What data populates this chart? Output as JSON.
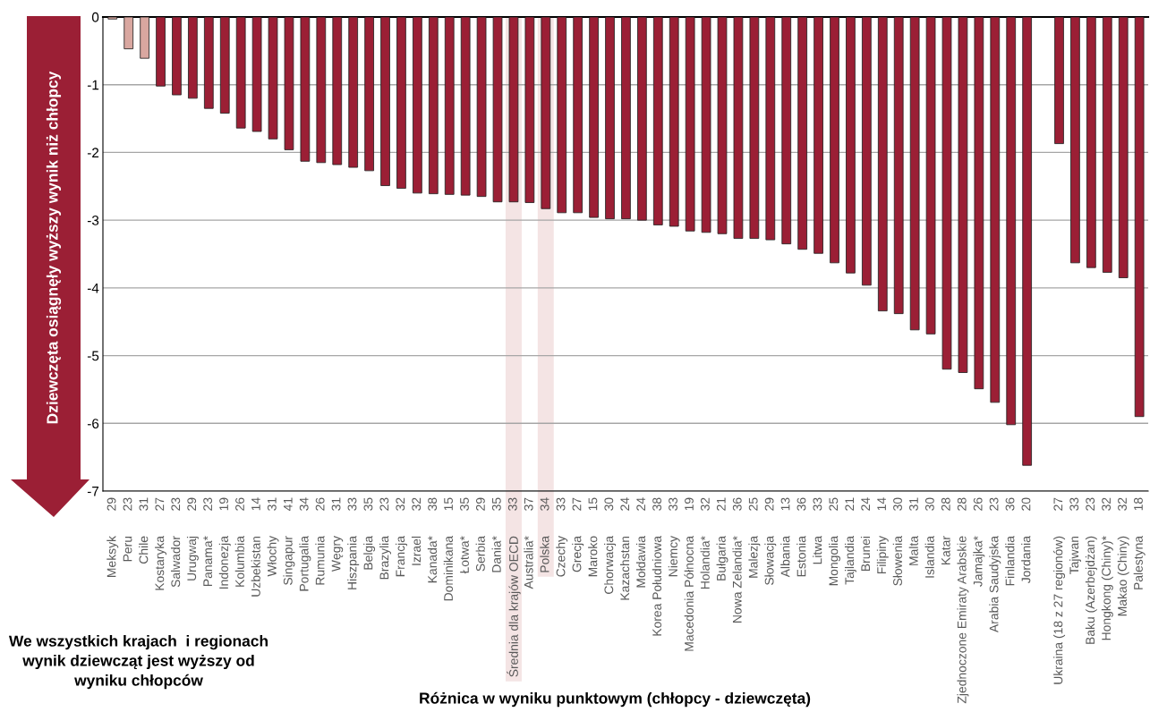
{
  "chart_data": {
    "type": "bar",
    "ylabel": "Dziewczęta osiągnęły wyższy wynik niż chłopcy",
    "xlabel": "Różnica w wyniku punktowym (chłopcy - dziewczęta)",
    "categories": [
      "Meksyk",
      "Peru",
      "Chile",
      "Kostaryka",
      "Salwador",
      "Urugwaj",
      "Panama*",
      "Indonezja",
      "Kolumbia",
      "Uzbekistan",
      "Włochy",
      "Singapur",
      "Portugalia",
      "Rumunia",
      "Węgry",
      "Hiszpania",
      "Belgia",
      "Brazylia",
      "Francja",
      "Izrael",
      "Kanada*",
      "Dominikana",
      "Łotwa*",
      "Serbia",
      "Dania*",
      "Średnia dla krajów OECD",
      "Australia*",
      "Polska",
      "Czechy",
      "Grecja",
      "Maroko",
      "Chorwacja",
      "Kazachstan",
      "Mołdawia",
      "Korea Południowa",
      "Niemcy",
      "Macedonia Północna",
      "Holandia*",
      "Bułgaria",
      "Nowa Zelandia*",
      "Malezja",
      "Słowacja",
      "Albania",
      "Estonia",
      "Litwa",
      "Mongolia",
      "Tajlandia",
      "Brunei",
      "Filipiny",
      "Słowenia",
      "Malta",
      "Islandia",
      "Katar",
      "Zjednoczone Emiraty Arabskie",
      "Jamajka*",
      "Arabia Saudyjska",
      "Finlandia",
      "Jordania",
      null,
      "Ukraina (18 z 27 regionów)",
      "Tajwan",
      "Baku (Azerbejdżan)",
      "Hongkong (Chiny)*",
      "Makao (Chiny)",
      "Palestyna"
    ],
    "values": [
      -0.03,
      -0.47,
      -0.61,
      -1.02,
      -1.15,
      -1.2,
      -1.35,
      -1.42,
      -1.64,
      -1.69,
      -1.8,
      -1.96,
      -2.13,
      -2.15,
      -2.18,
      -2.22,
      -2.27,
      -2.49,
      -2.53,
      -2.6,
      -2.61,
      -2.62,
      -2.63,
      -2.65,
      -2.73,
      -2.73,
      -2.74,
      -2.83,
      -2.89,
      -2.89,
      -2.96,
      -2.98,
      -2.98,
      -3.0,
      -3.07,
      -3.09,
      -3.16,
      -3.18,
      -3.2,
      -3.27,
      -3.27,
      -3.29,
      -3.35,
      -3.43,
      -3.49,
      -3.63,
      -3.78,
      -3.96,
      -4.34,
      -4.38,
      -4.62,
      -4.68,
      -5.2,
      -5.25,
      -5.49,
      -5.69,
      -6.02,
      -6.62,
      null,
      -1.87,
      -3.63,
      -3.7,
      -3.77,
      -3.85,
      -5.9
    ],
    "colors": [
      "#d9a7a0",
      "#d9a7a0",
      "#d9a7a0",
      "#9b1f35",
      "#9b1f35",
      "#9b1f35",
      "#9b1f35",
      "#9b1f35",
      "#9b1f35",
      "#9b1f35",
      "#9b1f35",
      "#9b1f35",
      "#9b1f35",
      "#9b1f35",
      "#9b1f35",
      "#9b1f35",
      "#9b1f35",
      "#9b1f35",
      "#9b1f35",
      "#9b1f35",
      "#9b1f35",
      "#9b1f35",
      "#9b1f35",
      "#9b1f35",
      "#9b1f35",
      "#9b1f35",
      "#9b1f35",
      "#9b1f35",
      "#9b1f35",
      "#9b1f35",
      "#9b1f35",
      "#9b1f35",
      "#9b1f35",
      "#9b1f35",
      "#9b1f35",
      "#9b1f35",
      "#9b1f35",
      "#9b1f35",
      "#9b1f35",
      "#9b1f35",
      "#9b1f35",
      "#9b1f35",
      "#9b1f35",
      "#9b1f35",
      "#9b1f35",
      "#9b1f35",
      "#9b1f35",
      "#9b1f35",
      "#9b1f35",
      "#9b1f35",
      "#9b1f35",
      "#9b1f35",
      "#9b1f35",
      "#9b1f35",
      "#9b1f35",
      "#9b1f35",
      "#9b1f35",
      "#9b1f35",
      "#9b1f35",
      "#9b1f35",
      "#9b1f35",
      "#9b1f35",
      "#9b1f35",
      "#9b1f35",
      "#9b1f35"
    ],
    "ylim": [
      -7,
      0
    ],
    "yticks": [
      0,
      -1,
      -2,
      -3,
      -4,
      -5,
      -6,
      -7
    ],
    "grid": "y",
    "bands": [
      {
        "axis": "x",
        "from": "Średnia dla krajów OECD",
        "to": "Średnia dla krajów OECD",
        "color": "#f2dfdf"
      },
      {
        "axis": "x",
        "from": "Polska",
        "to": "Polska",
        "color": "#f2dfdf"
      }
    ],
    "annotations": [
      "29",
      "23",
      "31",
      "27",
      "23",
      "29",
      "23",
      "19",
      "26",
      "14",
      "31",
      "41",
      "34",
      "26",
      "31",
      "33",
      "35",
      "23",
      "32",
      "32",
      "38",
      "15",
      "35",
      "29",
      "35",
      "33",
      "37",
      "34",
      "33",
      "27",
      "15",
      "30",
      "24",
      "24",
      "38",
      "33",
      "19",
      "32",
      "21",
      "36",
      "25",
      "29",
      "13",
      "36",
      "33",
      "25",
      "21",
      "24",
      "14",
      "30",
      "31",
      "30",
      "28",
      "28",
      "26",
      "23",
      "36",
      "20",
      "27",
      "33",
      "23",
      "32",
      "32",
      "18",
      "We wszystkich krajach  i regionach wynik dziewcząt jest wyższy od wyniku chłopców"
    ]
  }
}
